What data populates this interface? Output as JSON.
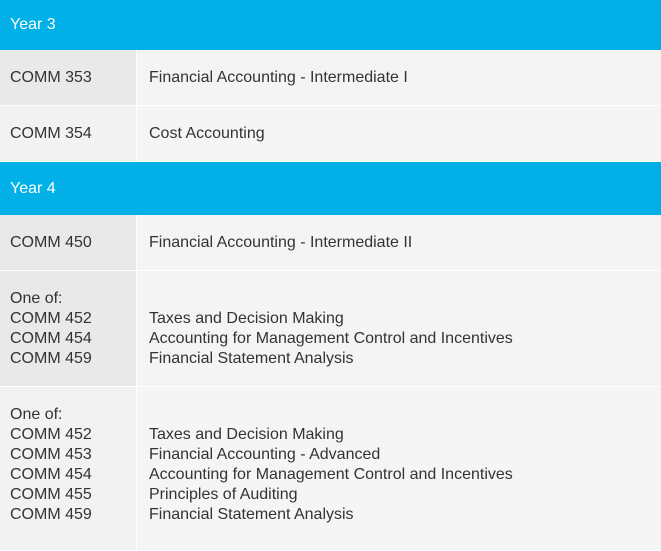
{
  "sections": [
    {
      "title": "Year 3",
      "rows": [
        {
          "code": "COMM 353",
          "name": "Financial Accounting - Intermediate I"
        },
        {
          "code": "COMM 354",
          "name": "Cost Accounting"
        }
      ]
    },
    {
      "title": "Year 4",
      "rows": [
        {
          "code": "COMM 450",
          "name": "Financial Accounting - Intermediate II"
        }
      ],
      "groups": [
        {
          "prefix": "One of:",
          "items": [
            {
              "code": "COMM 452",
              "name": "Taxes and Decision Making"
            },
            {
              "code": "COMM 454",
              "name": "Accounting for Management Control and Incentives"
            },
            {
              "code": "COMM 459",
              "name": "Financial Statement Analysis"
            }
          ]
        },
        {
          "prefix": "One of:",
          "items": [
            {
              "code": "COMM 452",
              "name": "Taxes and Decision Making"
            },
            {
              "code": "COMM 453",
              "name": "Financial Accounting - Advanced"
            },
            {
              "code": "COMM 454",
              "name": "Accounting for Management Control and Incentives"
            },
            {
              "code": "COMM 455",
              "name": "Principles of Auditing"
            },
            {
              "code": "COMM 459",
              "name": "Financial Statement Analysis"
            }
          ]
        }
      ]
    }
  ]
}
